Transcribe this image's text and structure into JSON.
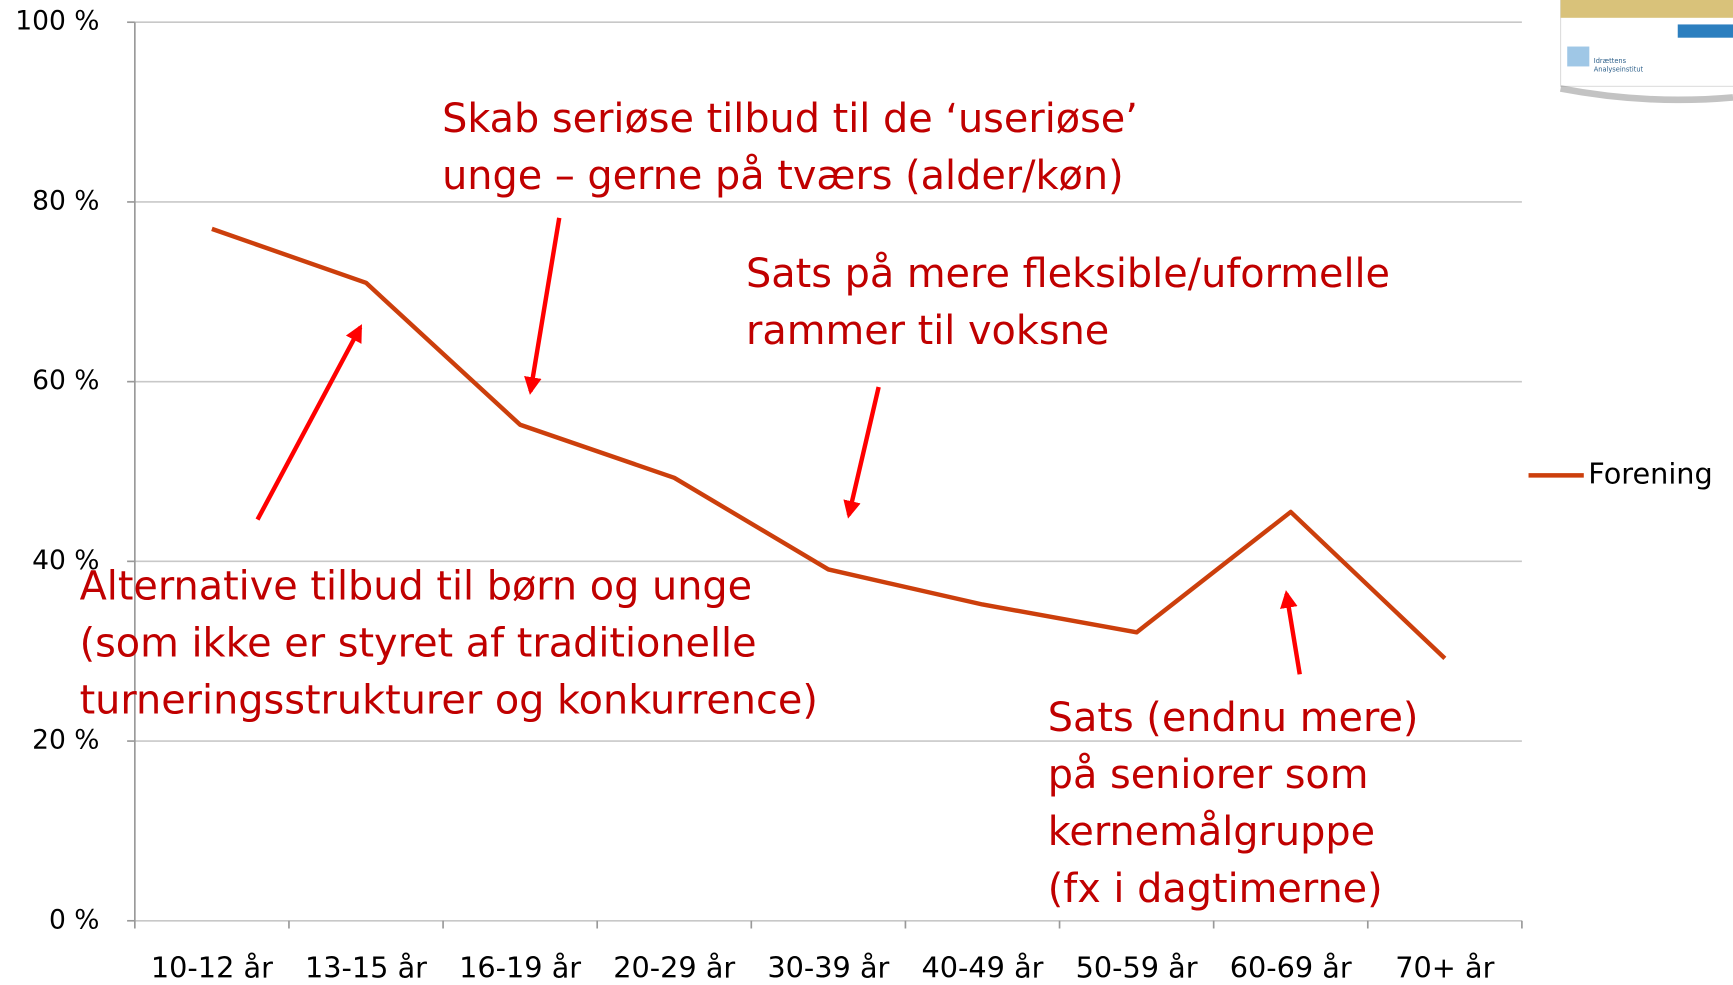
{
  "chart_data": {
    "type": "line",
    "categories": [
      "10-12 år",
      "13-15 år",
      "16-19 år",
      "20-29 år",
      "30-39 år",
      "40-49 år",
      "50-59 år",
      "60-69 år",
      "70+ år"
    ],
    "series": [
      {
        "name": "Forening",
        "color": "#cc3f0c",
        "values": [
          77,
          71,
          55.2,
          49.3,
          39.1,
          35.2,
          32.1,
          45.5,
          29.2
        ]
      }
    ],
    "ylim": [
      0,
      100
    ],
    "yticks": [
      {
        "value": 0,
        "label": "0 %"
      },
      {
        "value": 20,
        "label": "20 %"
      },
      {
        "value": 40,
        "label": "40 %"
      },
      {
        "value": 60,
        "label": "60 %"
      },
      {
        "value": 80,
        "label": "80 %"
      },
      {
        "value": 100,
        "label": "100 %"
      }
    ],
    "grid": true,
    "legend": "right",
    "annotations": [
      [
        "Skab seriøse tilbud til de ‘useriøse’",
        "unge – gerne på tværs (alder/køn)"
      ],
      [
        "Sats på mere fleksible/uformelle",
        "rammer til voksne"
      ],
      [
        "Alternative tilbud til børn og unge",
        "(som ikke er styret af traditionelle",
        "turneringsstrukturer og konkurrence)"
      ],
      [
        "Sats (endnu mere)",
        "på seniorer som",
        "kernemålgruppe",
        "(fx i dagtimerne)"
      ]
    ],
    "logo_text": [
      "Idrættens",
      "Analyseinstitut"
    ]
  }
}
